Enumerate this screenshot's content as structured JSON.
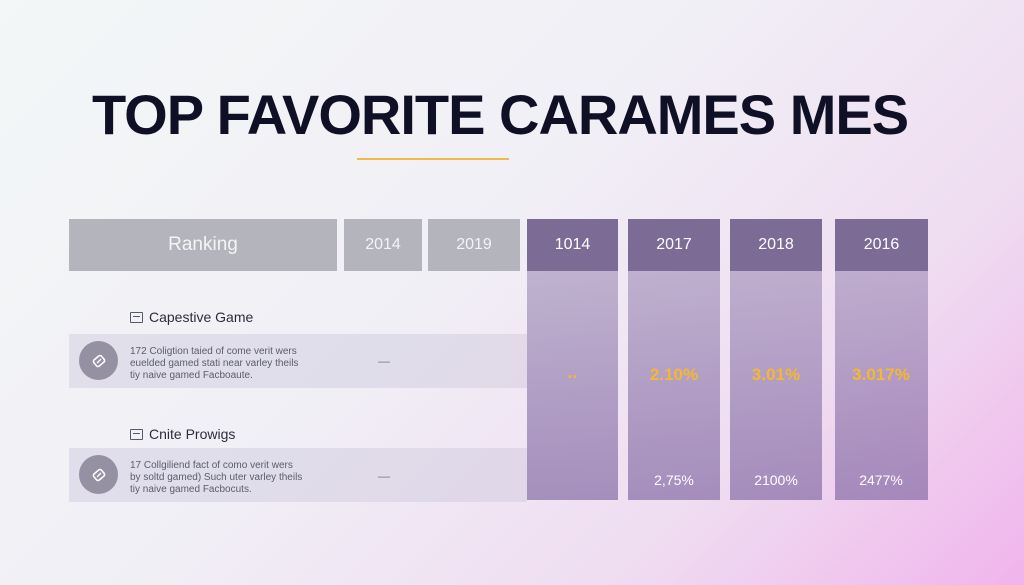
{
  "title": "TOP FAVORITE CARAMES MES",
  "table": {
    "headers": [
      "Ranking",
      "2014",
      "2019",
      "1014",
      "2017",
      "2018",
      "2016"
    ],
    "sections": [
      {
        "label": "Capestive Game",
        "description_line1": "172 Coligtion taied of come verit wers",
        "description_line2": "euelded gamed stati near varley theils",
        "description_line3": "tiy naive gamed Facboaute.",
        "col_2014": "—",
        "col_1014": "..",
        "col_2017": "2.10%",
        "col_2018": "3.01%",
        "col_2016": "3.017%"
      },
      {
        "label": "Cnite Prowigs",
        "description_line1": "17 Collgiliend fact of como verit wers",
        "description_line2": "by soltd gamed) Such uter varley theils",
        "description_line3": "tiy naive gamed Facbocuts.",
        "col_2014": "—",
        "col_2017": "2,75%",
        "col_2018": "2100%",
        "col_2016": "2477%"
      }
    ]
  },
  "colors": {
    "header_gray": "#b4b4bc",
    "header_purple": "#7b6b95",
    "highlight": "#f5b82e"
  }
}
